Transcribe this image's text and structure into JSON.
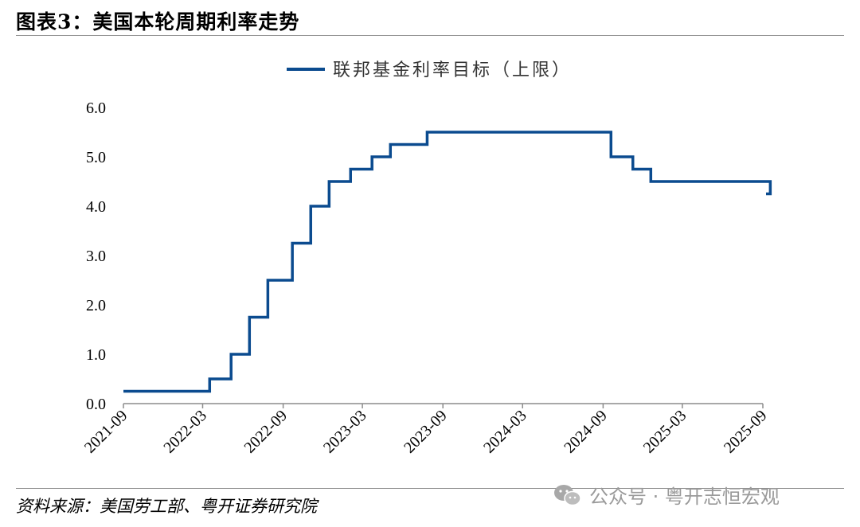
{
  "header": {
    "title": "图表3：美国本轮周期利率走势"
  },
  "footer": {
    "source": "资料来源：美国劳工部、粤开证券研究院",
    "watermark": "公众号 · 粤开志恒宏观"
  },
  "colors": {
    "series": "#0b4b8f",
    "axis": "#8c8c8c"
  },
  "chart_data": {
    "type": "line",
    "title": "",
    "xlabel": "",
    "ylabel": "",
    "ylim": [
      0,
      6
    ],
    "y_ticks": [
      "0.0",
      "1.0",
      "2.0",
      "3.0",
      "4.0",
      "5.0",
      "6.0"
    ],
    "x_ticks": [
      "2021-09",
      "2022-03",
      "2022-09",
      "2023-03",
      "2023-09",
      "2024-03",
      "2024-09",
      "2025-03",
      "2025-09"
    ],
    "grid": false,
    "legend_position": "top-center",
    "step": true,
    "series": [
      {
        "name": "联邦基金利率目标（上限）",
        "points": [
          [
            "2021-09-01",
            0.25
          ],
          [
            "2022-03-17",
            0.5
          ],
          [
            "2022-05-05",
            1.0
          ],
          [
            "2022-06-16",
            1.75
          ],
          [
            "2022-07-28",
            2.5
          ],
          [
            "2022-09-22",
            3.25
          ],
          [
            "2022-11-03",
            4.0
          ],
          [
            "2022-12-15",
            4.5
          ],
          [
            "2023-02-02",
            4.75
          ],
          [
            "2023-03-23",
            5.0
          ],
          [
            "2023-05-04",
            5.25
          ],
          [
            "2023-07-27",
            5.5
          ],
          [
            "2024-09-19",
            5.0
          ],
          [
            "2024-11-08",
            4.75
          ],
          [
            "2024-12-19",
            4.5
          ],
          [
            "2025-09-18",
            4.25
          ]
        ]
      }
    ]
  }
}
